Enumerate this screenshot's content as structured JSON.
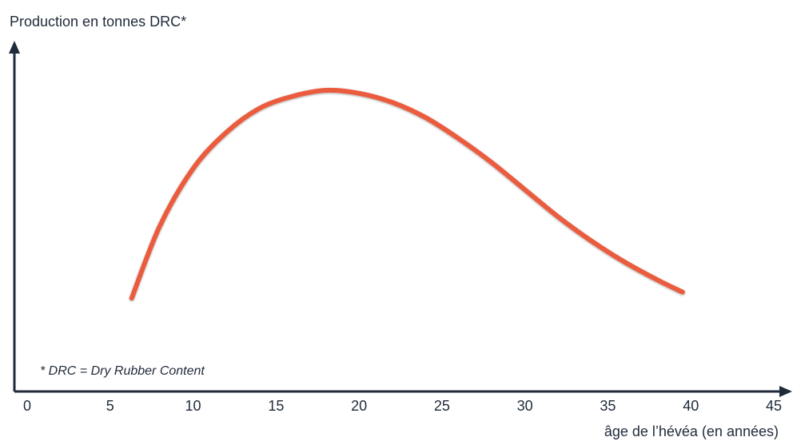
{
  "chart_data": {
    "type": "line",
    "ylabel": "Production en tonnes DRC*",
    "xlabel": "âge de l’hévéa (en années)",
    "x_ticks": [
      "0",
      "5",
      "10",
      "15",
      "20",
      "25",
      "30",
      "35",
      "40",
      "45"
    ],
    "xlim": [
      0,
      45
    ],
    "y_ticks": [],
    "grid": false,
    "footnote": "* DRC = Dry Rubber Content",
    "series": [
      {
        "color": "#ea5b3c",
        "x": [
          6.3,
          8,
          10,
          12,
          14,
          16,
          18,
          20,
          22,
          24,
          26,
          28,
          30,
          32,
          34,
          36,
          38,
          39.5
        ],
        "y": [
          0.31,
          0.55,
          0.74,
          0.86,
          0.94,
          0.98,
          1.0,
          0.99,
          0.96,
          0.91,
          0.84,
          0.76,
          0.67,
          0.58,
          0.5,
          0.43,
          0.37,
          0.33
        ]
      }
    ]
  }
}
